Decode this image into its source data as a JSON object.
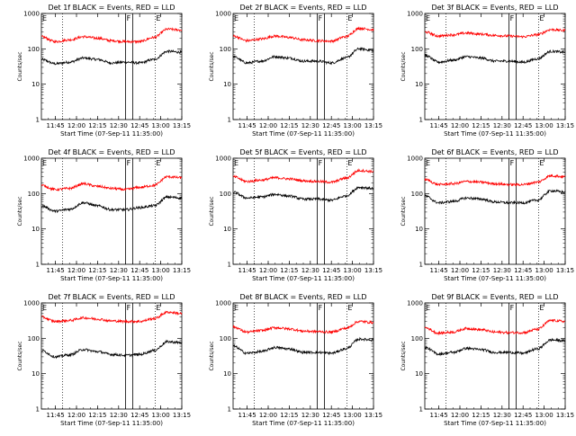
{
  "colors": {
    "background": "#ffffff",
    "axis": "#000000",
    "events": "#000000",
    "lld": "#ff0000"
  },
  "chart_data": [
    {
      "type": "line",
      "title": "Det 1f BLACK = Events, RED = LLD",
      "xlabel": "Start Time (07-Sep-11 11:35:00)",
      "ylabel": "Counts/sec",
      "xlim": [
        "11:35",
        "13:15"
      ],
      "ylim": [
        1,
        1000
      ],
      "yscale": "log",
      "xticks": [
        "11:45",
        "12:00",
        "12:15",
        "12:30",
        "12:45",
        "13:00",
        "13:15"
      ],
      "yticks": [
        "1",
        "10",
        "100",
        "1000"
      ],
      "markers": [
        {
          "label": "E",
          "x": "11:35"
        },
        {
          "label": "F",
          "x": "12:35"
        },
        {
          "label": "E",
          "x": "12:56"
        }
      ],
      "dotted_lines": [
        "11:50",
        "12:56"
      ],
      "flag_band": [
        "12:35",
        "12:40"
      ],
      "series": [
        {
          "name": "BLACK = Events",
          "color": "#000000",
          "x": [
            "11:35",
            "11:45",
            "11:55",
            "12:05",
            "12:15",
            "12:25",
            "12:35",
            "12:45",
            "12:55",
            "13:05",
            "13:15"
          ],
          "y": [
            50,
            38,
            42,
            55,
            50,
            40,
            42,
            40,
            50,
            85,
            80
          ]
        },
        {
          "name": "RED = LLD",
          "color": "#ff0000",
          "x": [
            "11:35",
            "11:45",
            "11:55",
            "12:05",
            "12:15",
            "12:25",
            "12:35",
            "12:45",
            "12:55",
            "13:05",
            "13:15"
          ],
          "y": [
            220,
            160,
            180,
            220,
            200,
            170,
            160,
            160,
            210,
            360,
            340
          ]
        }
      ]
    },
    {
      "type": "line",
      "title": "Det 2f BLACK = Events, RED = LLD",
      "xlabel": "Start Time (07-Sep-11 11:35:00)",
      "ylabel": "Counts/sec",
      "xlim": [
        "11:35",
        "13:15"
      ],
      "ylim": [
        1,
        1000
      ],
      "yscale": "log",
      "xticks": [
        "11:45",
        "12:00",
        "12:15",
        "12:30",
        "12:45",
        "13:00",
        "13:15"
      ],
      "yticks": [
        "1",
        "10",
        "100",
        "1000"
      ],
      "markers": [
        {
          "label": "E",
          "x": "11:35"
        },
        {
          "label": "F",
          "x": "12:35"
        },
        {
          "label": "E",
          "x": "12:56"
        }
      ],
      "dotted_lines": [
        "11:50",
        "12:56"
      ],
      "flag_band": [
        "12:35",
        "12:40"
      ],
      "series": [
        {
          "name": "BLACK = Events",
          "color": "#000000",
          "x": [
            "11:35",
            "11:45",
            "11:55",
            "12:05",
            "12:15",
            "12:25",
            "12:35",
            "12:45",
            "12:55",
            "13:05",
            "13:15"
          ],
          "y": [
            60,
            40,
            45,
            60,
            55,
            45,
            45,
            40,
            55,
            100,
            90
          ]
        },
        {
          "name": "RED = LLD",
          "color": "#ff0000",
          "x": [
            "11:35",
            "11:45",
            "11:55",
            "12:05",
            "12:15",
            "12:25",
            "12:35",
            "12:45",
            "12:55",
            "13:05",
            "13:15"
          ],
          "y": [
            230,
            170,
            190,
            230,
            210,
            180,
            170,
            165,
            220,
            380,
            350
          ]
        }
      ]
    },
    {
      "type": "line",
      "title": "Det 3f BLACK = Events, RED = LLD",
      "xlabel": "Start Time (07-Sep-11 11:35:00)",
      "ylabel": "Counts/sec",
      "xlim": [
        "11:35",
        "13:15"
      ],
      "ylim": [
        1,
        1000
      ],
      "yscale": "log",
      "xticks": [
        "11:45",
        "12:00",
        "12:15",
        "12:30",
        "12:45",
        "13:00",
        "13:15"
      ],
      "yticks": [
        "1",
        "10",
        "100",
        "1000"
      ],
      "markers": [
        {
          "label": "E",
          "x": "11:35"
        },
        {
          "label": "F",
          "x": "12:35"
        },
        {
          "label": "E",
          "x": "12:56"
        }
      ],
      "dotted_lines": [
        "11:50",
        "12:56"
      ],
      "flag_band": [
        "12:35",
        "12:40"
      ],
      "series": [
        {
          "name": "BLACK = Events",
          "color": "#000000",
          "x": [
            "11:35",
            "11:45",
            "11:55",
            "12:05",
            "12:15",
            "12:25",
            "12:35",
            "12:45",
            "12:55",
            "13:05",
            "13:15"
          ],
          "y": [
            65,
            42,
            48,
            60,
            55,
            45,
            45,
            42,
            52,
            85,
            80
          ]
        },
        {
          "name": "RED = LLD",
          "color": "#ff0000",
          "x": [
            "11:35",
            "11:45",
            "11:55",
            "12:05",
            "12:15",
            "12:25",
            "12:35",
            "12:45",
            "12:55",
            "13:05",
            "13:15"
          ],
          "y": [
            300,
            230,
            250,
            280,
            260,
            240,
            230,
            220,
            250,
            350,
            330
          ]
        }
      ]
    },
    {
      "type": "line",
      "title": "Det 4f BLACK = Events, RED = LLD",
      "xlabel": "Start Time (07-Sep-11 11:35:00)",
      "ylabel": "Counts/sec",
      "xlim": [
        "11:35",
        "13:15"
      ],
      "ylim": [
        1,
        1000
      ],
      "yscale": "log",
      "xticks": [
        "11:45",
        "12:00",
        "12:15",
        "12:30",
        "12:45",
        "13:00",
        "13:15"
      ],
      "yticks": [
        "1",
        "10",
        "100",
        "1000"
      ],
      "markers": [
        {
          "label": "E",
          "x": "11:35"
        },
        {
          "label": "F",
          "x": "12:35"
        },
        {
          "label": "E",
          "x": "12:56"
        }
      ],
      "dotted_lines": [
        "11:50",
        "12:56"
      ],
      "flag_band": [
        "12:35",
        "12:40"
      ],
      "series": [
        {
          "name": "BLACK = Events",
          "color": "#000000",
          "x": [
            "11:35",
            "11:45",
            "11:55",
            "12:05",
            "12:15",
            "12:25",
            "12:35",
            "12:45",
            "12:55",
            "13:05",
            "13:15"
          ],
          "y": [
            45,
            32,
            36,
            55,
            45,
            35,
            35,
            40,
            45,
            80,
            75
          ]
        },
        {
          "name": "RED = LLD",
          "color": "#ff0000",
          "x": [
            "11:35",
            "11:45",
            "11:55",
            "12:05",
            "12:15",
            "12:25",
            "12:35",
            "12:45",
            "12:55",
            "13:05",
            "13:15"
          ],
          "y": [
            170,
            130,
            140,
            190,
            160,
            140,
            130,
            150,
            170,
            300,
            280
          ]
        }
      ]
    },
    {
      "type": "line",
      "title": "Det 5f BLACK = Events, RED = LLD",
      "xlabel": "Start Time (07-Sep-11 11:35:00)",
      "ylabel": "Counts/sec",
      "xlim": [
        "11:35",
        "13:15"
      ],
      "ylim": [
        1,
        1000
      ],
      "yscale": "log",
      "xticks": [
        "11:45",
        "12:00",
        "12:15",
        "12:30",
        "12:45",
        "13:00",
        "13:15"
      ],
      "yticks": [
        "1",
        "10",
        "100",
        "1000"
      ],
      "markers": [
        {
          "label": "E",
          "x": "11:35"
        },
        {
          "label": "F",
          "x": "12:35"
        },
        {
          "label": "E",
          "x": "12:56"
        }
      ],
      "dotted_lines": [
        "11:50",
        "12:56"
      ],
      "flag_band": [
        "12:35",
        "12:40"
      ],
      "series": [
        {
          "name": "BLACK = Events",
          "color": "#000000",
          "x": [
            "11:35",
            "11:45",
            "11:55",
            "12:05",
            "12:15",
            "12:25",
            "12:35",
            "12:45",
            "12:55",
            "13:05",
            "13:15"
          ],
          "y": [
            110,
            75,
            80,
            95,
            85,
            70,
            70,
            65,
            85,
            150,
            140
          ]
        },
        {
          "name": "RED = LLD",
          "color": "#ff0000",
          "x": [
            "11:35",
            "11:45",
            "11:55",
            "12:05",
            "12:15",
            "12:25",
            "12:35",
            "12:45",
            "12:55",
            "13:05",
            "13:15"
          ],
          "y": [
            300,
            220,
            240,
            280,
            260,
            230,
            220,
            210,
            270,
            450,
            420
          ]
        }
      ]
    },
    {
      "type": "line",
      "title": "Det 6f BLACK = Events, RED = LLD",
      "xlabel": "Start Time (07-Sep-11 11:35:00)",
      "ylabel": "Counts/sec",
      "xlim": [
        "11:35",
        "13:15"
      ],
      "ylim": [
        1,
        1000
      ],
      "yscale": "log",
      "xticks": [
        "11:45",
        "12:00",
        "12:15",
        "12:30",
        "12:45",
        "13:00",
        "13:15"
      ],
      "yticks": [
        "1",
        "10",
        "100",
        "1000"
      ],
      "markers": [
        {
          "label": "E",
          "x": "11:35"
        },
        {
          "label": "F",
          "x": "12:35"
        },
        {
          "label": "E",
          "x": "12:56"
        }
      ],
      "dotted_lines": [
        "11:50",
        "12:56"
      ],
      "flag_band": [
        "12:35",
        "12:40"
      ],
      "series": [
        {
          "name": "BLACK = Events",
          "color": "#000000",
          "x": [
            "11:35",
            "11:45",
            "11:55",
            "12:05",
            "12:15",
            "12:25",
            "12:35",
            "12:45",
            "12:55",
            "13:05",
            "13:15"
          ],
          "y": [
            85,
            55,
            60,
            75,
            70,
            58,
            55,
            55,
            65,
            120,
            110
          ]
        },
        {
          "name": "RED = LLD",
          "color": "#ff0000",
          "x": [
            "11:35",
            "11:45",
            "11:55",
            "12:05",
            "12:15",
            "12:25",
            "12:35",
            "12:45",
            "12:55",
            "13:05",
            "13:15"
          ],
          "y": [
            250,
            180,
            190,
            220,
            210,
            190,
            180,
            180,
            210,
            320,
            300
          ]
        }
      ]
    },
    {
      "type": "line",
      "title": "Det 7f BLACK = Events, RED = LLD",
      "xlabel": "Start Time (07-Sep-11 11:35:00)",
      "ylabel": "Counts/sec",
      "xlim": [
        "11:35",
        "13:15"
      ],
      "ylim": [
        1,
        1000
      ],
      "yscale": "log",
      "xticks": [
        "11:45",
        "12:00",
        "12:15",
        "12:30",
        "12:45",
        "13:00",
        "13:15"
      ],
      "yticks": [
        "1",
        "10",
        "100",
        "1000"
      ],
      "markers": [
        {
          "label": "E",
          "x": "11:35"
        },
        {
          "label": "F",
          "x": "12:35"
        },
        {
          "label": "E",
          "x": "12:56"
        }
      ],
      "dotted_lines": [
        "11:50",
        "12:56"
      ],
      "flag_band": [
        "12:35",
        "12:40"
      ],
      "series": [
        {
          "name": "BLACK = Events",
          "color": "#000000",
          "x": [
            "11:35",
            "11:45",
            "11:55",
            "12:05",
            "12:15",
            "12:25",
            "12:35",
            "12:45",
            "12:55",
            "13:05",
            "13:15"
          ],
          "y": [
            45,
            30,
            34,
            48,
            42,
            35,
            33,
            35,
            45,
            80,
            75
          ]
        },
        {
          "name": "RED = LLD",
          "color": "#ff0000",
          "x": [
            "11:35",
            "11:45",
            "11:55",
            "12:05",
            "12:15",
            "12:25",
            "12:35",
            "12:45",
            "12:55",
            "13:05",
            "13:15"
          ],
          "y": [
            400,
            300,
            320,
            380,
            350,
            310,
            300,
            300,
            360,
            550,
            500
          ]
        }
      ]
    },
    {
      "type": "line",
      "title": "Det 8f BLACK = Events, RED = LLD",
      "xlabel": "Start Time (07-Sep-11 11:35:00)",
      "ylabel": "Counts/sec",
      "xlim": [
        "11:35",
        "13:15"
      ],
      "ylim": [
        1,
        1000
      ],
      "yscale": "log",
      "xticks": [
        "11:45",
        "12:00",
        "12:15",
        "12:30",
        "12:45",
        "13:00",
        "13:15"
      ],
      "yticks": [
        "1",
        "10",
        "100",
        "1000"
      ],
      "markers": [
        {
          "label": "E",
          "x": "11:35"
        },
        {
          "label": "F",
          "x": "12:35"
        },
        {
          "label": "E",
          "x": "12:56"
        }
      ],
      "dotted_lines": [
        "11:50",
        "12:56"
      ],
      "flag_band": [
        "12:35",
        "12:40"
      ],
      "series": [
        {
          "name": "BLACK = Events",
          "color": "#000000",
          "x": [
            "11:35",
            "11:45",
            "11:55",
            "12:05",
            "12:15",
            "12:25",
            "12:35",
            "12:45",
            "12:55",
            "13:05",
            "13:15"
          ],
          "y": [
            60,
            38,
            42,
            55,
            50,
            40,
            40,
            38,
            50,
            95,
            90
          ]
        },
        {
          "name": "RED = LLD",
          "color": "#ff0000",
          "x": [
            "11:35",
            "11:45",
            "11:55",
            "12:05",
            "12:15",
            "12:25",
            "12:35",
            "12:45",
            "12:55",
            "13:05",
            "13:15"
          ],
          "y": [
            210,
            150,
            165,
            200,
            185,
            160,
            155,
            150,
            190,
            300,
            280
          ]
        }
      ]
    },
    {
      "type": "line",
      "title": "Det 9f BLACK = Events, RED = LLD",
      "xlabel": "Start Time (07-Sep-11 11:35:00)",
      "ylabel": "Counts/sec",
      "xlim": [
        "11:35",
        "13:15"
      ],
      "ylim": [
        1,
        1000
      ],
      "yscale": "log",
      "xticks": [
        "11:45",
        "12:00",
        "12:15",
        "12:30",
        "12:45",
        "13:00",
        "13:15"
      ],
      "yticks": [
        "1",
        "10",
        "100",
        "1000"
      ],
      "markers": [
        {
          "label": "E",
          "x": "11:35"
        },
        {
          "label": "F",
          "x": "12:35"
        },
        {
          "label": "E",
          "x": "12:56"
        }
      ],
      "dotted_lines": [
        "11:50",
        "12:56"
      ],
      "flag_band": [
        "12:35",
        "12:40"
      ],
      "series": [
        {
          "name": "BLACK = Events",
          "color": "#000000",
          "x": [
            "11:35",
            "11:45",
            "11:55",
            "12:05",
            "12:15",
            "12:25",
            "12:35",
            "12:45",
            "12:55",
            "13:05",
            "13:15"
          ],
          "y": [
            55,
            36,
            40,
            52,
            48,
            40,
            40,
            38,
            50,
            90,
            85
          ]
        },
        {
          "name": "RED = LLD",
          "color": "#ff0000",
          "x": [
            "11:35",
            "11:45",
            "11:55",
            "12:05",
            "12:15",
            "12:25",
            "12:35",
            "12:45",
            "12:55",
            "13:05",
            "13:15"
          ],
          "y": [
            200,
            140,
            150,
            190,
            175,
            150,
            145,
            145,
            180,
            320,
            300
          ]
        }
      ]
    }
  ]
}
